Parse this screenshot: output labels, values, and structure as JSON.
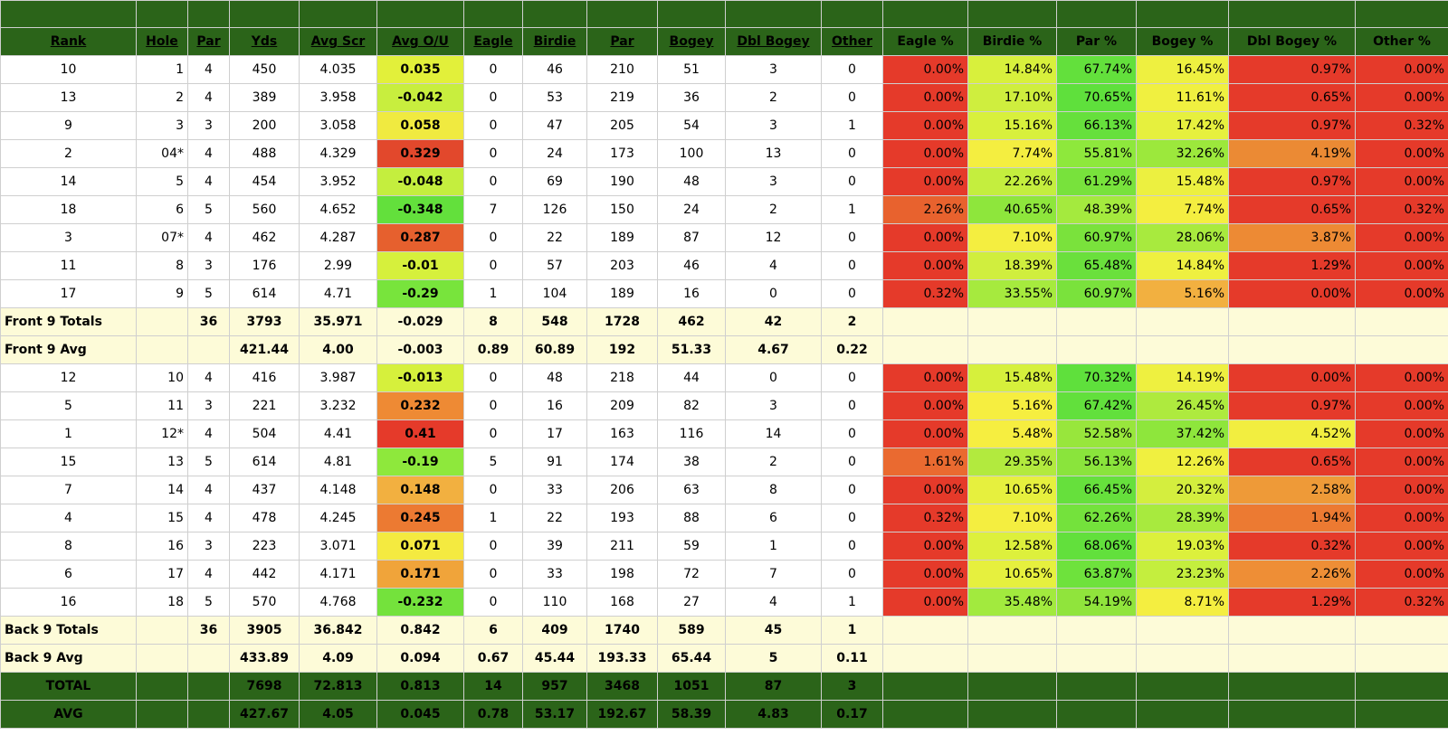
{
  "headers": [
    "Rank",
    "Hole",
    "Par",
    "Yds",
    "Avg Scr",
    "Avg O/U",
    "Eagle",
    "Birdie",
    "Par",
    "Bogey",
    "Dbl Bogey",
    "Other",
    "Eagle %",
    "Birdie %",
    "Par %",
    "Bogey %",
    "Dbl Bogey %",
    "Other %"
  ],
  "front_rows": [
    {
      "cells": [
        "10",
        "1",
        "4",
        "450",
        "4.035",
        "0.035",
        "0",
        "46",
        "210",
        "51",
        "3",
        "0",
        "0.00%",
        "14.84%",
        "67.74%",
        "16.45%",
        "0.97%",
        "0.00%"
      ],
      "ou_color": "#e2f03a",
      "pct_colors": [
        "#e53a2a",
        "#d8f03c",
        "#63e03c",
        "#eef040",
        "#e53a2a",
        "#e53a2a"
      ]
    },
    {
      "cells": [
        "13",
        "2",
        "4",
        "389",
        "3.958",
        "-0.042",
        "0",
        "53",
        "219",
        "36",
        "2",
        "0",
        "0.00%",
        "17.10%",
        "70.65%",
        "11.61%",
        "0.65%",
        "0.00%"
      ],
      "ou_color": "#c8ee3e",
      "pct_colors": [
        "#e53a2a",
        "#cfee3e",
        "#5fe03c",
        "#f0f040",
        "#e53a2a",
        "#e53a2a"
      ]
    },
    {
      "cells": [
        "9",
        "3",
        "3",
        "200",
        "3.058",
        "0.058",
        "0",
        "47",
        "205",
        "54",
        "3",
        "1",
        "0.00%",
        "15.16%",
        "66.13%",
        "17.42%",
        "0.97%",
        "0.32%"
      ],
      "ou_color": "#f0ea40",
      "pct_colors": [
        "#e53a2a",
        "#d8f03c",
        "#66e03c",
        "#e6f03e",
        "#e53a2a",
        "#e53a2a"
      ]
    },
    {
      "cells": [
        "2",
        "04*",
        "4",
        "488",
        "4.329",
        "0.329",
        "0",
        "24",
        "173",
        "100",
        "13",
        "0",
        "0.00%",
        "7.74%",
        "55.81%",
        "32.26%",
        "4.19%",
        "0.00%"
      ],
      "ou_color": "#e2482c",
      "pct_colors": [
        "#e53a2a",
        "#f4ee40",
        "#8ee83c",
        "#9ce83c",
        "#eb8a34",
        "#e53a2a"
      ]
    },
    {
      "cells": [
        "14",
        "5",
        "4",
        "454",
        "3.952",
        "-0.048",
        "0",
        "69",
        "190",
        "48",
        "3",
        "0",
        "0.00%",
        "22.26%",
        "61.29%",
        "15.48%",
        "0.97%",
        "0.00%"
      ],
      "ou_color": "#c4ee3e",
      "pct_colors": [
        "#e53a2a",
        "#c4ee3e",
        "#78e23c",
        "#ecf040",
        "#e53a2a",
        "#e53a2a"
      ]
    },
    {
      "cells": [
        "18",
        "6",
        "5",
        "560",
        "4.652",
        "-0.348",
        "7",
        "126",
        "150",
        "24",
        "2",
        "1",
        "2.26%",
        "40.65%",
        "48.39%",
        "7.74%",
        "0.65%",
        "0.32%"
      ],
      "ou_color": "#63e03c",
      "pct_colors": [
        "#e8622e",
        "#8ee63c",
        "#a4ea3e",
        "#f4ee40",
        "#e53a2a",
        "#e53a2a"
      ]
    },
    {
      "cells": [
        "3",
        "07*",
        "4",
        "462",
        "4.287",
        "0.287",
        "0",
        "22",
        "189",
        "87",
        "12",
        "0",
        "0.00%",
        "7.10%",
        "60.97%",
        "28.06%",
        "3.87%",
        "0.00%"
      ],
      "ou_color": "#e6602e",
      "pct_colors": [
        "#e53a2a",
        "#f4ee40",
        "#7ae23c",
        "#a8ea3e",
        "#ed8a34",
        "#e53a2a"
      ]
    },
    {
      "cells": [
        "11",
        "8",
        "3",
        "176",
        "2.99",
        "-0.01",
        "0",
        "57",
        "203",
        "46",
        "4",
        "0",
        "0.00%",
        "18.39%",
        "65.48%",
        "14.84%",
        "1.29%",
        "0.00%"
      ],
      "ou_color": "#d6f03c",
      "pct_colors": [
        "#e53a2a",
        "#d0ee3e",
        "#6ae03c",
        "#eef040",
        "#e53a2a",
        "#e53a2a"
      ]
    },
    {
      "cells": [
        "17",
        "9",
        "5",
        "614",
        "4.71",
        "-0.29",
        "1",
        "104",
        "189",
        "16",
        "0",
        "0",
        "0.32%",
        "33.55%",
        "60.97%",
        "5.16%",
        "0.00%",
        "0.00%"
      ],
      "ou_color": "#78e43c",
      "pct_colors": [
        "#e53a2a",
        "#a6ea3e",
        "#7ae23c",
        "#f2b040",
        "#e53a2a",
        "#e53a2a"
      ]
    }
  ],
  "front_totals": {
    "cells": [
      "Front 9 Totals",
      "",
      "36",
      "3793",
      "35.971",
      "-0.029",
      "8",
      "548",
      "1728",
      "462",
      "42",
      "2"
    ]
  },
  "front_avg": {
    "cells": [
      "Front 9 Avg",
      "",
      "",
      "421.44",
      "4.00",
      "-0.003",
      "0.89",
      "60.89",
      "192",
      "51.33",
      "4.67",
      "0.22"
    ]
  },
  "back_rows": [
    {
      "cells": [
        "12",
        "10",
        "4",
        "416",
        "3.987",
        "-0.013",
        "0",
        "48",
        "218",
        "44",
        "0",
        "0",
        "0.00%",
        "15.48%",
        "70.32%",
        "14.19%",
        "0.00%",
        "0.00%"
      ],
      "ou_color": "#d6f03c",
      "pct_colors": [
        "#e53a2a",
        "#d6f03c",
        "#5fe03c",
        "#eef040",
        "#e53a2a",
        "#e53a2a"
      ]
    },
    {
      "cells": [
        "5",
        "11",
        "3",
        "221",
        "3.232",
        "0.232",
        "0",
        "16",
        "209",
        "82",
        "3",
        "0",
        "0.00%",
        "5.16%",
        "67.42%",
        "26.45%",
        "0.97%",
        "0.00%"
      ],
      "ou_color": "#ee8a34",
      "pct_colors": [
        "#e53a2a",
        "#f6ee40",
        "#62e03c",
        "#aeea3e",
        "#e53a2a",
        "#e53a2a"
      ]
    },
    {
      "cells": [
        "1",
        "12*",
        "4",
        "504",
        "4.41",
        "0.41",
        "0",
        "17",
        "163",
        "116",
        "14",
        "0",
        "0.00%",
        "5.48%",
        "52.58%",
        "37.42%",
        "4.52%",
        "0.00%"
      ],
      "ou_color": "#e53a2a",
      "pct_colors": [
        "#e53a2a",
        "#f6ee40",
        "#98e63c",
        "#8ee63c",
        "#f2ee40",
        "#e53a2a"
      ]
    },
    {
      "cells": [
        "15",
        "13",
        "5",
        "614",
        "4.81",
        "-0.19",
        "5",
        "91",
        "174",
        "38",
        "2",
        "0",
        "1.61%",
        "29.35%",
        "56.13%",
        "12.26%",
        "0.65%",
        "0.00%"
      ],
      "ou_color": "#8ee83c",
      "pct_colors": [
        "#ea6a30",
        "#b2ea3e",
        "#8ae43c",
        "#f0f040",
        "#e53a2a",
        "#e53a2a"
      ]
    },
    {
      "cells": [
        "7",
        "14",
        "4",
        "437",
        "4.148",
        "0.148",
        "0",
        "33",
        "206",
        "63",
        "8",
        "0",
        "0.00%",
        "10.65%",
        "66.45%",
        "20.32%",
        "2.58%",
        "0.00%"
      ],
      "ou_color": "#f2b040",
      "pct_colors": [
        "#e53a2a",
        "#e6f03e",
        "#66e03c",
        "#d4ee3e",
        "#ee9a38",
        "#e53a2a"
      ]
    },
    {
      "cells": [
        "4",
        "15",
        "4",
        "478",
        "4.245",
        "0.245",
        "1",
        "22",
        "193",
        "88",
        "6",
        "0",
        "0.32%",
        "7.10%",
        "62.26%",
        "28.39%",
        "1.94%",
        "0.00%"
      ],
      "ou_color": "#ec7a32",
      "pct_colors": [
        "#e53a2a",
        "#f4ee40",
        "#74e23c",
        "#a8ea3e",
        "#ec7a32",
        "#e53a2a"
      ]
    },
    {
      "cells": [
        "8",
        "16",
        "3",
        "223",
        "3.071",
        "0.071",
        "0",
        "39",
        "211",
        "59",
        "1",
        "0",
        "0.00%",
        "12.58%",
        "68.06%",
        "19.03%",
        "0.32%",
        "0.00%"
      ],
      "ou_color": "#f4ea40",
      "pct_colors": [
        "#e53a2a",
        "#ddf03c",
        "#62e03c",
        "#dcf03c",
        "#e53a2a",
        "#e53a2a"
      ]
    },
    {
      "cells": [
        "6",
        "17",
        "4",
        "442",
        "4.171",
        "0.171",
        "0",
        "33",
        "198",
        "72",
        "7",
        "0",
        "0.00%",
        "10.65%",
        "63.87%",
        "23.23%",
        "2.26%",
        "0.00%"
      ],
      "ou_color": "#f0a43a",
      "pct_colors": [
        "#e53a2a",
        "#e6f03e",
        "#6ee23c",
        "#c4ee3e",
        "#ee8e36",
        "#e53a2a"
      ]
    },
    {
      "cells": [
        "16",
        "18",
        "5",
        "570",
        "4.768",
        "-0.232",
        "0",
        "110",
        "168",
        "27",
        "4",
        "1",
        "0.00%",
        "35.48%",
        "54.19%",
        "8.71%",
        "1.29%",
        "0.32%"
      ],
      "ou_color": "#74e23c",
      "pct_colors": [
        "#e53a2a",
        "#a2ea3e",
        "#90e43c",
        "#f4ee40",
        "#e53a2a",
        "#e53a2a"
      ]
    }
  ],
  "back_totals": {
    "cells": [
      "Back 9 Totals",
      "",
      "36",
      "3905",
      "36.842",
      "0.842",
      "6",
      "409",
      "1740",
      "589",
      "45",
      "1"
    ]
  },
  "back_avg": {
    "cells": [
      "Back 9 Avg",
      "",
      "",
      "433.89",
      "4.09",
      "0.094",
      "0.67",
      "45.44",
      "193.33",
      "65.44",
      "5",
      "0.11"
    ]
  },
  "total": {
    "cells": [
      "TOTAL",
      "",
      "",
      "7698",
      "72.813",
      "0.813",
      "14",
      "957",
      "3468",
      "1051",
      "87",
      "3"
    ]
  },
  "avg": {
    "cells": [
      "AVG",
      "",
      "",
      "427.67",
      "4.05",
      "0.045",
      "0.78",
      "53.17",
      "192.67",
      "58.39",
      "4.83",
      "0.17"
    ]
  }
}
